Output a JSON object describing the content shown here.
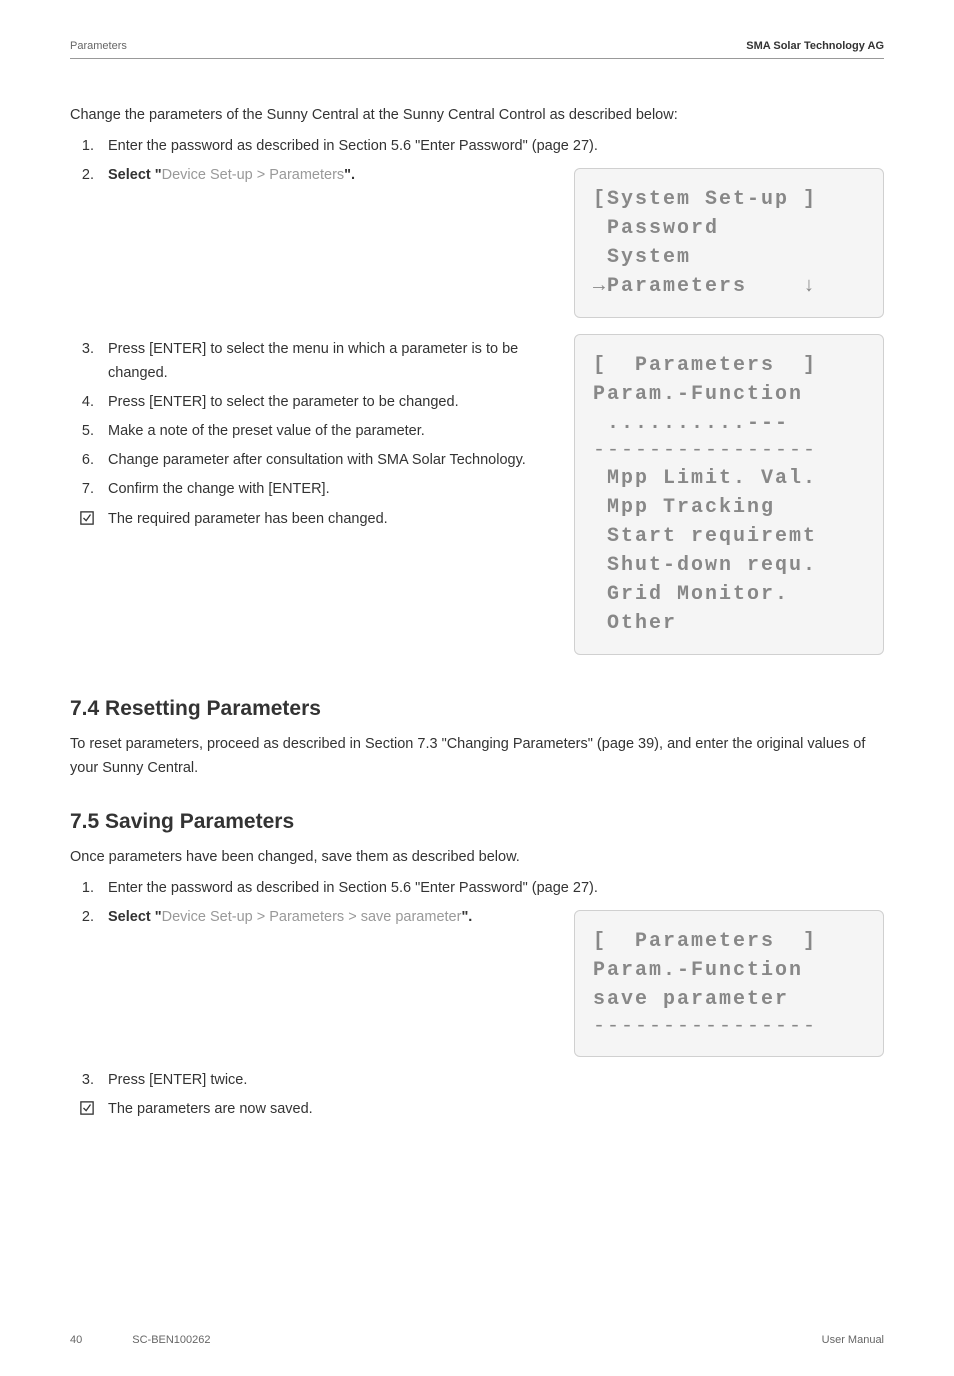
{
  "header": {
    "left": "Parameters",
    "right": "SMA Solar Technology AG"
  },
  "intro": "Change the parameters of the Sunny Central at the Sunny Central Control as described below:",
  "steps_a": [
    {
      "num": "1.",
      "text_plain": "Enter the password as described in Section 5.6 \"Enter Password\" (page 27)."
    },
    {
      "num": "2.",
      "text_html": "<span class='bold'>Select \"</span><span class='light'>Device Set-up > Parameters</span><span class='bold'>\".</span>"
    }
  ],
  "lcd1": {
    "lines": [
      "[System Set-up ]",
      " Password",
      " System",
      "→Parameters    ↓"
    ]
  },
  "steps_b": [
    {
      "num": "3.",
      "text": "Press [ENTER] to select the menu in which a parameter is to be changed."
    },
    {
      "num": "4.",
      "text": "Press [ENTER] to select the parameter to be changed."
    },
    {
      "num": "5.",
      "text": "Make a note of the preset value of the parameter."
    },
    {
      "num": "6.",
      "text": "Change parameter after consultation with SMA Solar Technology."
    },
    {
      "num": "7.",
      "text": "Confirm the change with [ENTER]."
    }
  ],
  "check_b": "The required parameter has been changed.",
  "lcd2": {
    "lines_top": [
      "[  Parameters  ]",
      "Param.-Function",
      " ..........---"
    ],
    "dash": "----------------",
    "lines_bot": [
      " Mpp Limit. Val.",
      " Mpp Tracking",
      " Start requiremt",
      " Shut-down requ.",
      " Grid Monitor.",
      " Other"
    ]
  },
  "section74": {
    "title": "7.4  Resetting Parameters",
    "body": "To reset parameters, proceed as described in Section 7.3 \"Changing Parameters\" (page 39), and enter the original values of your Sunny Central."
  },
  "section75": {
    "title": "7.5  Saving Parameters",
    "intro": "Once parameters have been changed, save them as described below.",
    "steps_c": [
      {
        "num": "1.",
        "text_plain": "Enter the password as described in Section 5.6 \"Enter Password\" (page 27)."
      },
      {
        "num": "2.",
        "text_html": "<span class='bold'>Select \"</span><span class='light'>Device Set-up > Parameters > save parameter</span><span class='bold'>\".</span>"
      }
    ],
    "steps_d": [
      {
        "num": "3.",
        "text": "Press [ENTER] twice."
      }
    ],
    "check_d": "The parameters are now saved."
  },
  "lcd3": {
    "lines": [
      "[  Parameters  ]",
      "Param.-Function",
      "save parameter"
    ],
    "dash": "----------------"
  },
  "footer": {
    "page": "40",
    "doc": "SC-BEN100262",
    "right": "User Manual"
  },
  "colors": {
    "text": "#333333",
    "light": "#999999",
    "lcd_bg": "#f5f5f5",
    "lcd_border": "#d0d0d0",
    "lcd_text": "#888888"
  }
}
